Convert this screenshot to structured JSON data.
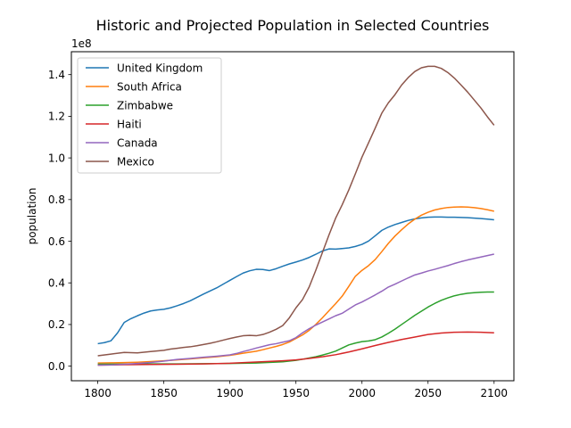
{
  "chart_data": {
    "type": "line",
    "title": "Historic and Projected Population in Selected Countries",
    "xlabel": "",
    "ylabel": "population",
    "y_scale_label": "1e8",
    "xlim": [
      1780,
      2115
    ],
    "ylim": [
      -0.07,
      1.51
    ],
    "xticks": [
      1800,
      1850,
      1900,
      1950,
      2000,
      2050,
      2100
    ],
    "xtick_labels": [
      "1800",
      "1850",
      "1900",
      "1950",
      "2000",
      "2050",
      "2100"
    ],
    "yticks": [
      0.0,
      0.2,
      0.4,
      0.6,
      0.8,
      1.0,
      1.2,
      1.4
    ],
    "ytick_labels": [
      "0.0",
      "0.2",
      "0.4",
      "0.6",
      "0.8",
      "1.0",
      "1.2",
      "1.4"
    ],
    "grid": false,
    "legend_position": "top-left",
    "series": [
      {
        "name": "United Kingdom",
        "color": "#1f77b4",
        "x": [
          1800,
          1805,
          1810,
          1815,
          1820,
          1825,
          1830,
          1835,
          1840,
          1845,
          1850,
          1855,
          1860,
          1865,
          1870,
          1875,
          1880,
          1885,
          1890,
          1895,
          1900,
          1905,
          1910,
          1915,
          1920,
          1925,
          1930,
          1935,
          1940,
          1945,
          1950,
          1955,
          1960,
          1965,
          1970,
          1975,
          1980,
          1985,
          1990,
          1995,
          2000,
          2005,
          2010,
          2015,
          2020,
          2025,
          2030,
          2035,
          2040,
          2045,
          2050,
          2055,
          2060,
          2065,
          2070,
          2075,
          2080,
          2085,
          2090,
          2095,
          2100
        ],
        "values": [
          0.108,
          0.113,
          0.122,
          0.16,
          0.21,
          0.228,
          0.242,
          0.255,
          0.265,
          0.27,
          0.273,
          0.28,
          0.29,
          0.301,
          0.314,
          0.33,
          0.346,
          0.361,
          0.376,
          0.394,
          0.412,
          0.43,
          0.447,
          0.458,
          0.465,
          0.464,
          0.459,
          0.468,
          0.48,
          0.491,
          0.5,
          0.51,
          0.522,
          0.537,
          0.553,
          0.563,
          0.562,
          0.565,
          0.568,
          0.575,
          0.585,
          0.601,
          0.626,
          0.652,
          0.668,
          0.68,
          0.69,
          0.7,
          0.707,
          0.712,
          0.715,
          0.716,
          0.716,
          0.715,
          0.715,
          0.714,
          0.713,
          0.711,
          0.709,
          0.706,
          0.703
        ]
      },
      {
        "name": "South Africa",
        "color": "#ff7f0e",
        "x": [
          1800,
          1810,
          1820,
          1830,
          1840,
          1850,
          1860,
          1870,
          1880,
          1890,
          1900,
          1905,
          1910,
          1915,
          1920,
          1925,
          1930,
          1935,
          1940,
          1945,
          1950,
          1955,
          1960,
          1965,
          1970,
          1975,
          1980,
          1985,
          1990,
          1995,
          2000,
          2005,
          2010,
          2015,
          2020,
          2025,
          2030,
          2035,
          2040,
          2045,
          2050,
          2055,
          2060,
          2065,
          2070,
          2075,
          2080,
          2085,
          2090,
          2095,
          2100
        ],
        "values": [
          0.015,
          0.016,
          0.017,
          0.019,
          0.022,
          0.026,
          0.03,
          0.035,
          0.04,
          0.045,
          0.052,
          0.057,
          0.062,
          0.067,
          0.072,
          0.079,
          0.087,
          0.095,
          0.104,
          0.116,
          0.133,
          0.15,
          0.172,
          0.2,
          0.232,
          0.266,
          0.3,
          0.336,
          0.383,
          0.432,
          0.46,
          0.483,
          0.512,
          0.55,
          0.59,
          0.625,
          0.655,
          0.683,
          0.706,
          0.725,
          0.739,
          0.75,
          0.757,
          0.762,
          0.764,
          0.765,
          0.764,
          0.761,
          0.757,
          0.751,
          0.744
        ]
      },
      {
        "name": "Zimbabwe",
        "color": "#2ca02c",
        "x": [
          1800,
          1820,
          1840,
          1860,
          1880,
          1900,
          1920,
          1940,
          1950,
          1955,
          1960,
          1965,
          1970,
          1975,
          1980,
          1985,
          1990,
          1995,
          2000,
          2005,
          2010,
          2015,
          2020,
          2025,
          2030,
          2035,
          2040,
          2045,
          2050,
          2055,
          2060,
          2065,
          2070,
          2075,
          2080,
          2085,
          2090,
          2095,
          2100
        ],
        "values": [
          0.01,
          0.01,
          0.011,
          0.011,
          0.012,
          0.013,
          0.015,
          0.021,
          0.028,
          0.033,
          0.039,
          0.045,
          0.053,
          0.062,
          0.072,
          0.087,
          0.102,
          0.111,
          0.118,
          0.121,
          0.127,
          0.14,
          0.158,
          0.178,
          0.2,
          0.222,
          0.244,
          0.264,
          0.284,
          0.301,
          0.316,
          0.328,
          0.338,
          0.345,
          0.35,
          0.353,
          0.355,
          0.356,
          0.356
        ]
      },
      {
        "name": "Haiti",
        "color": "#d62728",
        "x": [
          1800,
          1820,
          1840,
          1860,
          1880,
          1900,
          1920,
          1940,
          1950,
          1960,
          1970,
          1980,
          1990,
          2000,
          2010,
          2020,
          2030,
          2040,
          2050,
          2060,
          2070,
          2080,
          2090,
          2100
        ],
        "values": [
          0.005,
          0.007,
          0.008,
          0.009,
          0.011,
          0.014,
          0.02,
          0.026,
          0.03,
          0.037,
          0.045,
          0.055,
          0.068,
          0.083,
          0.099,
          0.114,
          0.128,
          0.14,
          0.152,
          0.159,
          0.163,
          0.164,
          0.163,
          0.16
        ]
      },
      {
        "name": "Canada",
        "color": "#9467bd",
        "x": [
          1800,
          1810,
          1820,
          1830,
          1840,
          1850,
          1860,
          1870,
          1880,
          1890,
          1900,
          1905,
          1910,
          1915,
          1920,
          1925,
          1930,
          1935,
          1940,
          1945,
          1950,
          1955,
          1960,
          1965,
          1970,
          1975,
          1980,
          1985,
          1990,
          1995,
          2000,
          2005,
          2010,
          2015,
          2020,
          2025,
          2030,
          2035,
          2040,
          2045,
          2050,
          2055,
          2060,
          2065,
          2070,
          2075,
          2080,
          2085,
          2090,
          2095,
          2100
        ],
        "values": [
          0.005,
          0.006,
          0.009,
          0.013,
          0.018,
          0.024,
          0.032,
          0.037,
          0.043,
          0.048,
          0.054,
          0.061,
          0.07,
          0.078,
          0.087,
          0.095,
          0.103,
          0.108,
          0.115,
          0.122,
          0.137,
          0.16,
          0.18,
          0.197,
          0.212,
          0.227,
          0.242,
          0.254,
          0.274,
          0.294,
          0.308,
          0.325,
          0.342,
          0.36,
          0.38,
          0.394,
          0.409,
          0.424,
          0.438,
          0.447,
          0.457,
          0.465,
          0.474,
          0.483,
          0.493,
          0.502,
          0.51,
          0.517,
          0.524,
          0.531,
          0.538
        ]
      },
      {
        "name": "Mexico",
        "color": "#8c564b",
        "x": [
          1800,
          1810,
          1820,
          1830,
          1840,
          1850,
          1855,
          1860,
          1865,
          1870,
          1875,
          1880,
          1885,
          1890,
          1895,
          1900,
          1905,
          1910,
          1915,
          1920,
          1925,
          1930,
          1935,
          1940,
          1945,
          1950,
          1955,
          1960,
          1965,
          1970,
          1975,
          1980,
          1985,
          1990,
          1995,
          2000,
          2005,
          2010,
          2015,
          2020,
          2025,
          2030,
          2035,
          2040,
          2045,
          2050,
          2055,
          2060,
          2065,
          2070,
          2075,
          2080,
          2085,
          2090,
          2095,
          2100
        ],
        "values": [
          0.05,
          0.058,
          0.066,
          0.064,
          0.07,
          0.076,
          0.082,
          0.086,
          0.09,
          0.093,
          0.098,
          0.104,
          0.11,
          0.117,
          0.125,
          0.133,
          0.14,
          0.146,
          0.148,
          0.146,
          0.152,
          0.163,
          0.177,
          0.195,
          0.232,
          0.28,
          0.32,
          0.38,
          0.46,
          0.545,
          0.63,
          0.71,
          0.775,
          0.846,
          0.924,
          1.004,
          1.073,
          1.143,
          1.215,
          1.265,
          1.304,
          1.35,
          1.386,
          1.415,
          1.433,
          1.44,
          1.44,
          1.43,
          1.41,
          1.383,
          1.35,
          1.316,
          1.278,
          1.24,
          1.197,
          1.157
        ]
      }
    ]
  }
}
